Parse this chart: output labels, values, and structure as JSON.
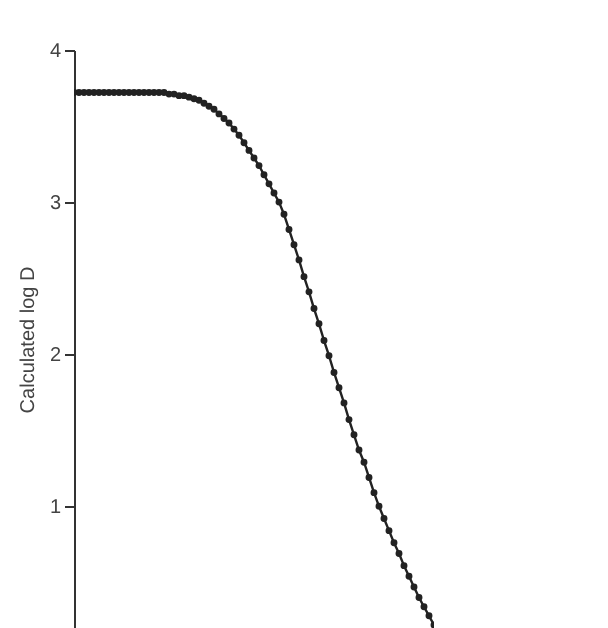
{
  "chart_data": {
    "type": "line",
    "ylabel": "Calculated log D",
    "categories": [
      null,
      null,
      null,
      null,
      null,
      null,
      null,
      null,
      null,
      null,
      null,
      null,
      null,
      null,
      null,
      null,
      null,
      null,
      null,
      null,
      null,
      null,
      null,
      null,
      null,
      null,
      null,
      null,
      null,
      null,
      null,
      null,
      null,
      null,
      null,
      null,
      null,
      null,
      null,
      null,
      null,
      null,
      null,
      null,
      null,
      null,
      null,
      null,
      null,
      null,
      null,
      null,
      null,
      null,
      null,
      null,
      null,
      null,
      null,
      null,
      null,
      null,
      null,
      null,
      null,
      null,
      null,
      null,
      null,
      null,
      null,
      null,
      null
    ],
    "series": [
      {
        "color": "#222222",
        "values": [
          3.72,
          3.72,
          3.72,
          3.72,
          3.72,
          3.72,
          3.72,
          3.72,
          3.72,
          3.72,
          3.72,
          3.72,
          3.72,
          3.72,
          3.72,
          3.72,
          3.72,
          3.72,
          3.72,
          3.71,
          3.71,
          3.7,
          3.7,
          3.69,
          3.68,
          3.67,
          3.65,
          3.63,
          3.61,
          3.58,
          3.55,
          3.52,
          3.48,
          3.44,
          3.39,
          3.34,
          3.29,
          3.24,
          3.18,
          3.12,
          3.06,
          3.0,
          2.92,
          2.82,
          2.72,
          2.62,
          2.51,
          2.41,
          2.3,
          2.2,
          2.09,
          1.99,
          1.88,
          1.78,
          1.68,
          1.57,
          1.47,
          1.37,
          1.29,
          1.19,
          1.09,
          1.0,
          0.92,
          0.84,
          0.76,
          0.69,
          0.61,
          0.54,
          0.47,
          0.4,
          0.34,
          0.28,
          0.22
        ]
      }
    ],
    "ylim": [
      0.2,
      4
    ],
    "yticks": [
      1,
      2,
      3,
      4
    ],
    "tick_labels": "y",
    "marker": "circle",
    "line_style": "solid"
  }
}
